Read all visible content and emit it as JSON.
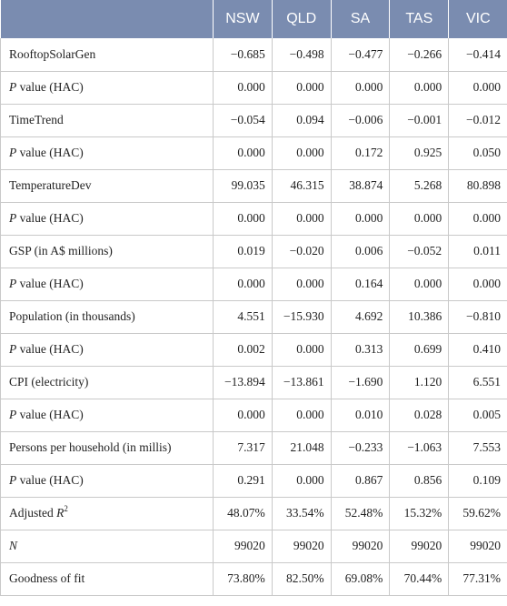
{
  "header": {
    "blank": "",
    "columns": [
      "NSW",
      "QLD",
      "SA",
      "TAS",
      "VIC"
    ]
  },
  "rows": [
    {
      "label": "RooftopSolarGen",
      "values": [
        "−0.685",
        "−0.498",
        "−0.477",
        "−0.266",
        "−0.414"
      ]
    },
    {
      "label_italic": "P",
      "label_rest": " value (HAC)",
      "values": [
        "0.000",
        "0.000",
        "0.000",
        "0.000",
        "0.000"
      ]
    },
    {
      "label": "TimeTrend",
      "values": [
        "−0.054",
        "0.094",
        "−0.006",
        "−0.001",
        "−0.012"
      ]
    },
    {
      "label_italic": "P",
      "label_rest": " value (HAC)",
      "values": [
        "0.000",
        "0.000",
        "0.172",
        "0.925",
        "0.050"
      ]
    },
    {
      "label": "TemperatureDev",
      "values": [
        "99.035",
        "46.315",
        "38.874",
        "5.268",
        "80.898"
      ]
    },
    {
      "label_italic": "P",
      "label_rest": " value (HAC)",
      "values": [
        "0.000",
        "0.000",
        "0.000",
        "0.000",
        "0.000"
      ]
    },
    {
      "label": "GSP (in A$ millions)",
      "values": [
        "0.019",
        "−0.020",
        "0.006",
        "−0.052",
        "0.011"
      ]
    },
    {
      "label_italic": "P",
      "label_rest": " value (HAC)",
      "values": [
        "0.000",
        "0.000",
        "0.164",
        "0.000",
        "0.000"
      ]
    },
    {
      "label": "Population (in thousands)",
      "values": [
        "4.551",
        "−15.930",
        "4.692",
        "10.386",
        "−0.810"
      ]
    },
    {
      "label_italic": "P",
      "label_rest": " value (HAC)",
      "values": [
        "0.002",
        "0.000",
        "0.313",
        "0.699",
        "0.410"
      ]
    },
    {
      "label": "CPI (electricity)",
      "values": [
        "−13.894",
        "−13.861",
        "−1.690",
        "1.120",
        "6.551"
      ]
    },
    {
      "label_italic": "P",
      "label_rest": " value (HAC)",
      "values": [
        "0.000",
        "0.000",
        "0.010",
        "0.028",
        "0.005"
      ]
    },
    {
      "label": "Persons per household (in millis)",
      "values": [
        "7.317",
        "21.048",
        "−0.233",
        "−1.063",
        "7.553"
      ]
    },
    {
      "label_italic": "P",
      "label_rest": " value (HAC)",
      "values": [
        "0.291",
        "0.000",
        "0.867",
        "0.856",
        "0.109"
      ]
    },
    {
      "label": "Adjusted ",
      "label_italic": "R",
      "label_sup": "2",
      "values": [
        "48.07%",
        "33.54%",
        "52.48%",
        "15.32%",
        "59.62%"
      ]
    },
    {
      "label_italic": "N",
      "values": [
        "99020",
        "99020",
        "99020",
        "99020",
        "99020"
      ]
    },
    {
      "label": "Goodness of fit",
      "values": [
        "73.80%",
        "82.50%",
        "69.08%",
        "70.44%",
        "77.31%"
      ]
    }
  ]
}
